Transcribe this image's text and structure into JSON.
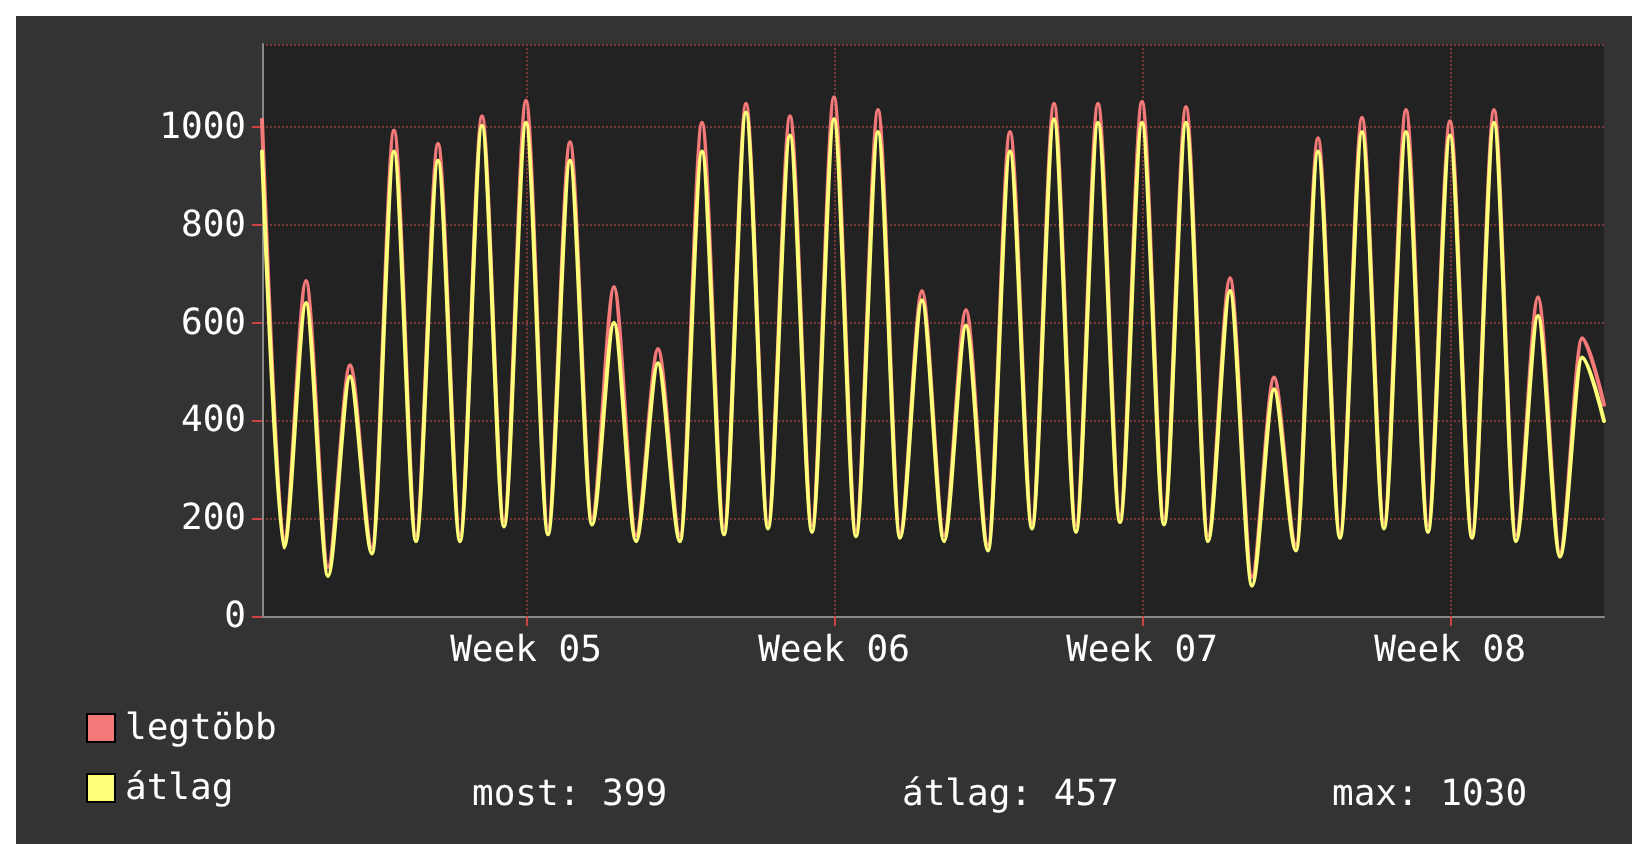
{
  "chart_data": {
    "type": "line",
    "categories": [
      null,
      null,
      null,
      null,
      null,
      null,
      null,
      null,
      null,
      null,
      null,
      null,
      "Week 05",
      null,
      null,
      null,
      null,
      null,
      null,
      null,
      null,
      null,
      null,
      null,
      null,
      null,
      "Week 06",
      null,
      null,
      null,
      null,
      null,
      null,
      null,
      null,
      null,
      null,
      null,
      null,
      null,
      "Week 07",
      null,
      null,
      null,
      null,
      null,
      null,
      null,
      null,
      null,
      null,
      null,
      null,
      null,
      "Week 08",
      null,
      null,
      null,
      null,
      null,
      null,
      null
    ],
    "series": [
      {
        "name": "legtöbb",
        "color": "#f47a7a",
        "values": [
          1015,
          150,
          685,
          100,
          513,
          140,
          993,
          165,
          966,
          165,
          1022,
          195,
          1054,
          180,
          969,
          200,
          673,
          165,
          546,
          165,
          1009,
          180,
          1048,
          190,
          1022,
          185,
          1061,
          175,
          1035,
          170,
          665,
          165,
          626,
          145,
          990,
          190,
          1048,
          185,
          1048,
          205,
          1052,
          200,
          1041,
          165,
          691,
          80,
          488,
          145,
          977,
          170,
          1019,
          190,
          1035,
          185,
          1012,
          170,
          1035,
          165,
          652,
          130,
          568,
          432
        ]
      },
      {
        "name": "átlag",
        "color": "#ffff7a",
        "values": [
          950,
          140,
          640,
          82,
          490,
          128,
          950,
          153,
          931,
          153,
          1003,
          183,
          1009,
          167,
          931,
          187,
          600,
          153,
          517,
          153,
          950,
          167,
          1030,
          179,
          983,
          172,
          1016,
          163,
          990,
          160,
          646,
          153,
          594,
          134,
          950,
          179,
          1016,
          172,
          1009,
          192,
          1009,
          187,
          1009,
          153,
          665,
          62,
          464,
          134,
          950,
          160,
          990,
          179,
          990,
          172,
          983,
          160,
          1009,
          153,
          614,
          121,
          529,
          399
        ]
      }
    ],
    "ylim": [
      0,
      1170
    ],
    "yticks": [
      0,
      200,
      400,
      600,
      800,
      1000
    ],
    "grid": true,
    "legend": "bottom left",
    "marker": "none",
    "line_style": "solid",
    "annotations": [
      "most: 399",
      "átlag: 457",
      "max: 1030"
    ]
  }
}
